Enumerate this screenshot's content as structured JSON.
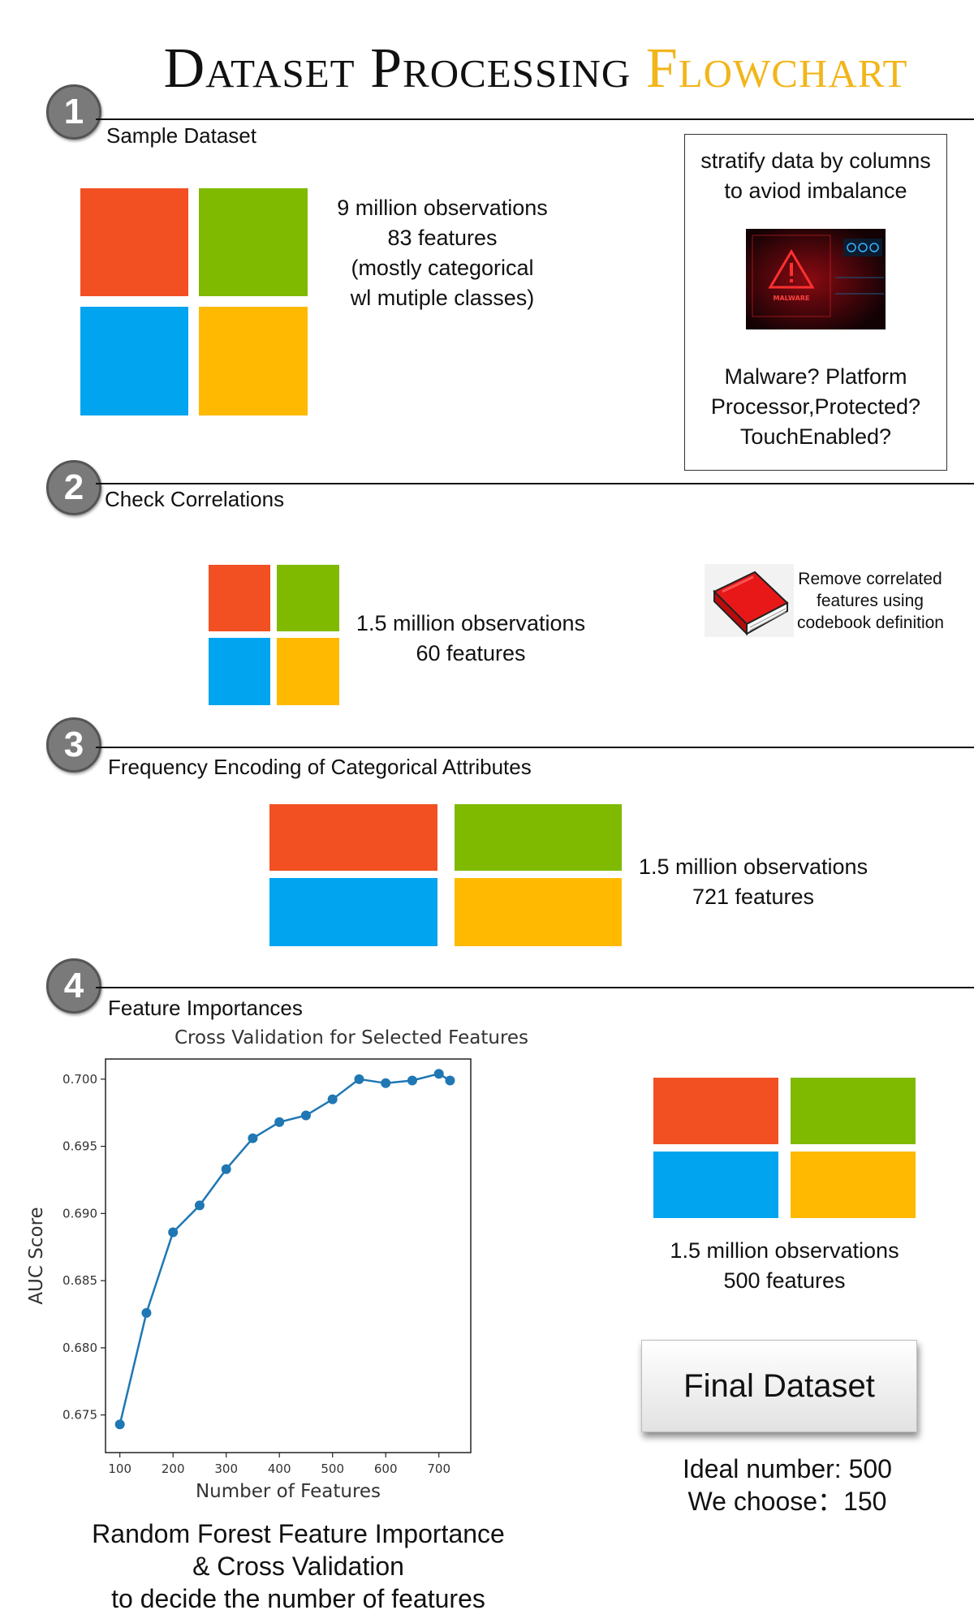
{
  "title": {
    "main": "Dataset Processing",
    "accent": "Flowchart"
  },
  "steps": [
    {
      "number": "1",
      "label": "Sample Dataset"
    },
    {
      "number": "2",
      "label": "Check Correlations"
    },
    {
      "number": "3",
      "label": "Frequency Encoding of Categorical Attributes"
    },
    {
      "number": "4",
      "label": "Feature Importances"
    }
  ],
  "step1": {
    "info": [
      "9 million observations",
      "83 features",
      "(mostly categorical",
      "wl mutiple classes)"
    ],
    "box_top": [
      "stratify data by columns",
      "to aviod imbalance"
    ],
    "malware_image_text": "MALWARE",
    "box_bottom": [
      "Malware? Platform",
      "Processor,Protected?",
      "TouchEnabled?"
    ]
  },
  "step2": {
    "info": [
      "1.5 million observations",
      "60 features"
    ],
    "note": [
      "Remove correlated",
      "features using",
      "codebook definition"
    ]
  },
  "step3": {
    "info": [
      "1.5 million observations",
      "721 features"
    ]
  },
  "step4": {
    "info": [
      "1.5 million observations",
      "500 features"
    ],
    "final_button": "Final Dataset",
    "ideal": "Ideal number: 500",
    "choose": "We choose：150",
    "caption": [
      "Random Forest Feature Importance",
      "& Cross Validation",
      "to decide the number of features"
    ]
  },
  "colors": {
    "red": "#f25022",
    "green": "#7fba00",
    "blue": "#00a4ef",
    "yellow": "#ffb900",
    "accent": "#f2b51a",
    "line": "#1f77b4"
  },
  "chart_data": {
    "type": "line",
    "title": "Cross Validation for Selected Features",
    "xlabel": "Number of Features",
    "ylabel": "AUC Score",
    "x": [
      100,
      150,
      200,
      250,
      300,
      350,
      400,
      450,
      500,
      550,
      600,
      650,
      700,
      721
    ],
    "y": [
      0.6743,
      0.6826,
      0.6886,
      0.6906,
      0.6933,
      0.6956,
      0.6968,
      0.6973,
      0.6985,
      0.7,
      0.6997,
      0.6999,
      0.7004,
      0.6999
    ],
    "xlim": [
      73,
      760
    ],
    "ylim": [
      0.6722,
      0.7015
    ],
    "xticks": [
      100,
      200,
      300,
      400,
      500,
      600,
      700
    ],
    "yticks": [
      0.675,
      0.68,
      0.685,
      0.69,
      0.695,
      0.7
    ],
    "ytick_labels": [
      "0.675",
      "0.680",
      "0.685",
      "0.690",
      "0.695",
      "0.700"
    ],
    "grid": false,
    "markers": true
  }
}
